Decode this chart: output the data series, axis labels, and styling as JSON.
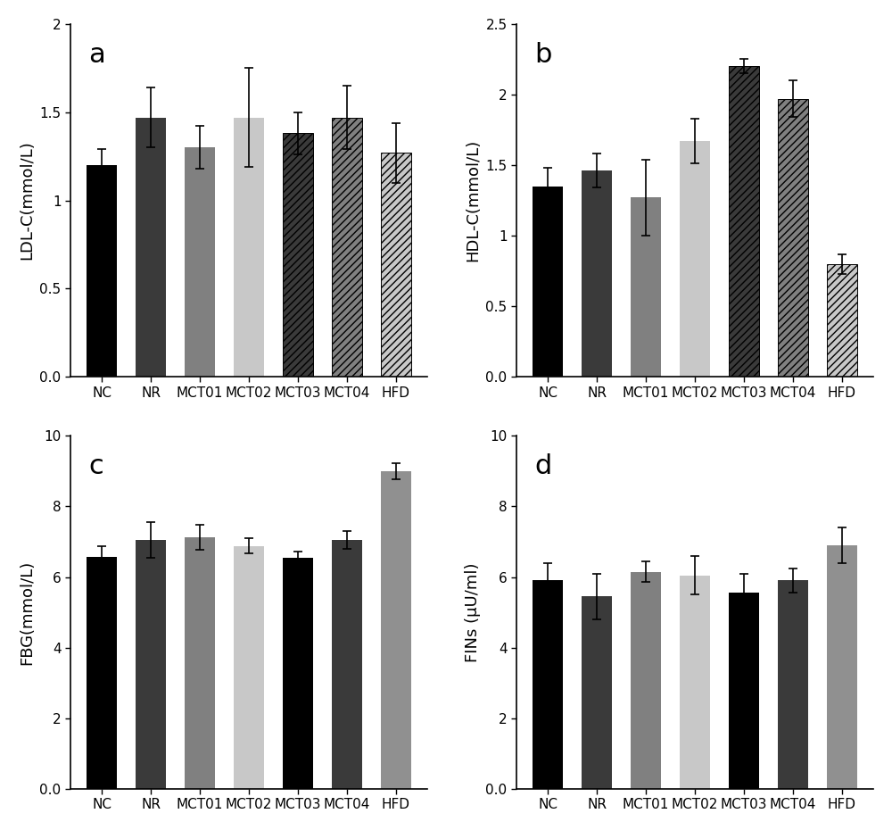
{
  "categories": [
    "NC",
    "NR",
    "MCT01",
    "MCT02",
    "MCT03",
    "MCT04",
    "HFD"
  ],
  "panel_a": {
    "title": "a",
    "ylabel": "LDL-C(mmol/L)",
    "ylim": [
      0,
      2.0
    ],
    "yticks": [
      0.0,
      0.5,
      1.0,
      1.5,
      2.0
    ],
    "values": [
      1.2,
      1.47,
      1.3,
      1.47,
      1.38,
      1.47,
      1.27
    ],
    "errors": [
      0.09,
      0.17,
      0.12,
      0.28,
      0.12,
      0.18,
      0.17
    ],
    "bar_colors": [
      "#000000",
      "#3a3a3a",
      "#808080",
      "#c8c8c8",
      "#3a3a3a",
      "#808080",
      "#c8c8c8"
    ],
    "hatch_patterns": [
      null,
      null,
      null,
      null,
      "////",
      "////",
      "////"
    ]
  },
  "panel_b": {
    "title": "b",
    "ylabel": "HDL-C(mmol/L)",
    "ylim": [
      0,
      2.5
    ],
    "yticks": [
      0.0,
      0.5,
      1.0,
      1.5,
      2.0,
      2.5
    ],
    "values": [
      1.35,
      1.46,
      1.27,
      1.67,
      2.2,
      1.97,
      0.8
    ],
    "errors": [
      0.13,
      0.12,
      0.27,
      0.16,
      0.05,
      0.13,
      0.07
    ],
    "bar_colors": [
      "#000000",
      "#3a3a3a",
      "#808080",
      "#c8c8c8",
      "#3a3a3a",
      "#808080",
      "#c8c8c8"
    ],
    "hatch_patterns": [
      null,
      null,
      null,
      null,
      "////",
      "////",
      "////"
    ]
  },
  "panel_c": {
    "title": "c",
    "ylabel": "FBG(mmol/L)",
    "ylim": [
      0,
      10
    ],
    "yticks": [
      0,
      2,
      4,
      6,
      8,
      10
    ],
    "values": [
      6.58,
      7.05,
      7.12,
      6.88,
      6.55,
      7.05,
      9.0
    ],
    "errors": [
      0.3,
      0.5,
      0.35,
      0.22,
      0.18,
      0.25,
      0.22
    ],
    "bar_colors": [
      "#000000",
      "#3a3a3a",
      "#808080",
      "#c8c8c8",
      "#000000",
      "#3a3a3a",
      "#909090"
    ],
    "hatch_patterns": [
      null,
      null,
      null,
      null,
      null,
      null,
      null
    ]
  },
  "panel_d": {
    "title": "d",
    "ylabel": "FINs (μU/ml)",
    "ylim": [
      0,
      10
    ],
    "yticks": [
      0,
      2,
      4,
      6,
      8,
      10
    ],
    "values": [
      5.9,
      5.45,
      6.15,
      6.05,
      5.55,
      5.9,
      6.9
    ],
    "errors": [
      0.5,
      0.65,
      0.3,
      0.55,
      0.55,
      0.35,
      0.5
    ],
    "bar_colors": [
      "#000000",
      "#3a3a3a",
      "#808080",
      "#c8c8c8",
      "#000000",
      "#3a3a3a",
      "#909090"
    ],
    "hatch_patterns": [
      null,
      null,
      null,
      null,
      null,
      null,
      null
    ]
  },
  "bar_width": 0.62,
  "label_fontsize": 13,
  "tick_fontsize": 11,
  "panel_label_fontsize": 22
}
